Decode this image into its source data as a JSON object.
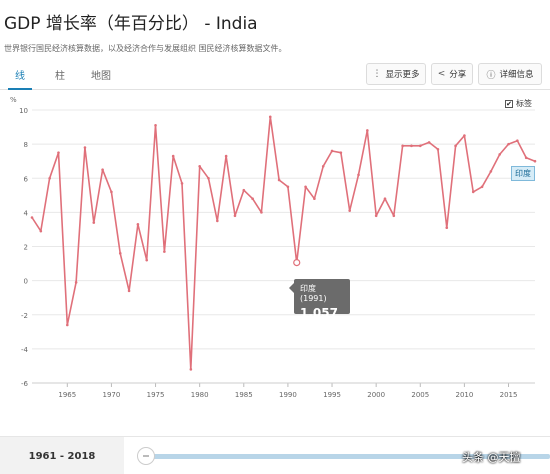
{
  "header": {
    "title": "GDP 增长率（年百分比） - India",
    "subtitle": "世界银行国民经济核算数据，以及经济合作与发展组织 国民经济核算数据文件。"
  },
  "tabs": [
    {
      "label": "线",
      "active": true
    },
    {
      "label": "柱",
      "active": false
    },
    {
      "label": "地图",
      "active": false
    }
  ],
  "toolbar": {
    "show_more": "显示更多",
    "share": "分享",
    "details": "详细信息"
  },
  "legend": {
    "label": "标签",
    "checked": true,
    "check_mark": "✔"
  },
  "tooltip": {
    "title": "印度 (1991)",
    "value": "1.057"
  },
  "series_label": "印度",
  "range": {
    "label": "1961 - 2018"
  },
  "watermark": "头条 @天擅",
  "colors": {
    "line": "#e0707a",
    "accent": "#1a7fb5",
    "grid": "#e8e8e8"
  },
  "chart_data": {
    "type": "line",
    "unit_label": "%",
    "ylim": [
      -6,
      10
    ],
    "yticks": [
      -6,
      -4,
      -2,
      0,
      2,
      4,
      6,
      8,
      10
    ],
    "xlim": [
      1961,
      2018
    ],
    "xticks": [
      1965,
      1970,
      1975,
      1980,
      1985,
      1990,
      1995,
      2000,
      2005,
      2010,
      2015
    ],
    "grid": true,
    "series": [
      {
        "name": "印度",
        "x": [
          1961,
          1962,
          1963,
          1964,
          1965,
          1966,
          1967,
          1968,
          1969,
          1970,
          1971,
          1972,
          1973,
          1974,
          1975,
          1976,
          1977,
          1978,
          1979,
          1980,
          1981,
          1982,
          1983,
          1984,
          1985,
          1986,
          1987,
          1988,
          1989,
          1990,
          1991,
          1992,
          1993,
          1994,
          1995,
          1996,
          1997,
          1998,
          1999,
          2000,
          2001,
          2002,
          2003,
          2004,
          2005,
          2006,
          2007,
          2008,
          2009,
          2010,
          2011,
          2012,
          2013,
          2014,
          2015,
          2016,
          2017,
          2018
        ],
        "values": [
          3.7,
          2.9,
          6.0,
          7.5,
          -2.6,
          -0.1,
          7.8,
          3.4,
          6.5,
          5.2,
          1.6,
          -0.6,
          3.3,
          1.2,
          9.1,
          1.7,
          7.3,
          5.7,
          -5.2,
          6.7,
          6.0,
          3.5,
          7.3,
          3.8,
          5.3,
          4.8,
          4.0,
          9.6,
          5.9,
          5.5,
          1.057,
          5.5,
          4.8,
          6.7,
          7.6,
          7.5,
          4.1,
          6.2,
          8.8,
          3.8,
          4.8,
          3.8,
          7.9,
          7.9,
          7.9,
          8.1,
          7.7,
          3.1,
          7.9,
          8.5,
          5.2,
          5.5,
          6.4,
          7.4,
          8.0,
          8.2,
          7.2,
          7.0
        ]
      }
    ]
  }
}
